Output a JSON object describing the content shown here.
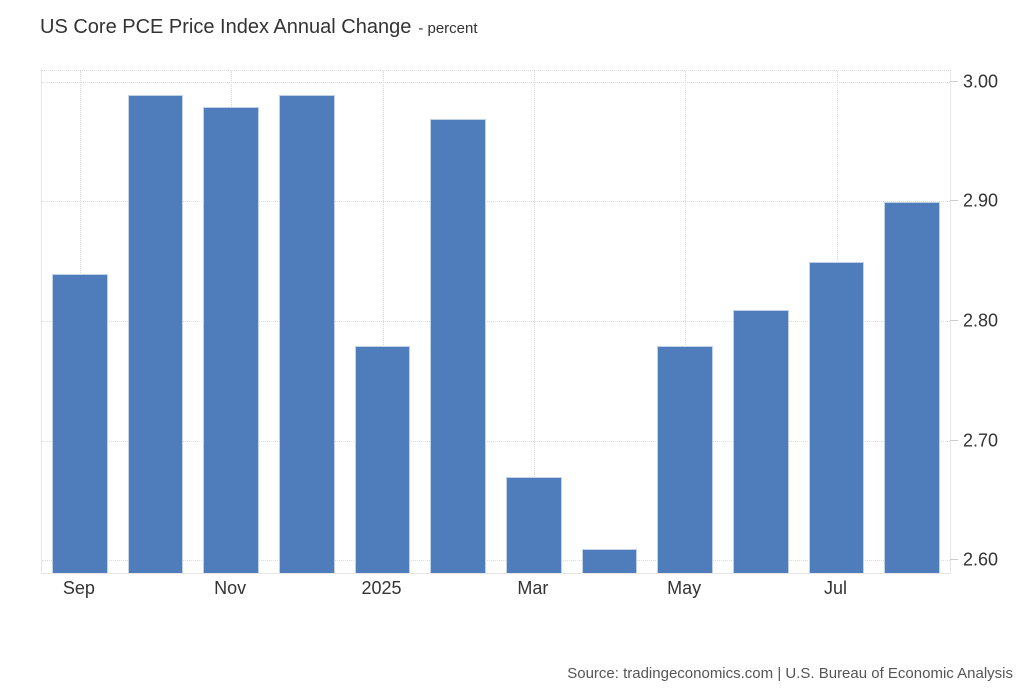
{
  "title": {
    "main": "US Core PCE Price Index Annual Change",
    "suffix": "- percent"
  },
  "source": "Source: tradingeconomics.com | U.S. Bureau of Economic Analysis",
  "colors": {
    "bar": "#4f7cba",
    "grid": "#dcdcdc",
    "plot_border": "#e6e6e6",
    "axis_text": "#333333",
    "title_text": "#333333",
    "source_text": "#555555",
    "tick_mark": "#cccccc"
  },
  "chart_data": {
    "type": "bar",
    "categories": [
      "Sep",
      "Oct",
      "Nov",
      "Dec",
      "Jan",
      "Feb",
      "Mar",
      "Apr",
      "May",
      "Jun",
      "Jul",
      "Aug"
    ],
    "values": [
      2.84,
      2.99,
      2.98,
      2.99,
      2.78,
      2.97,
      2.67,
      2.61,
      2.78,
      2.81,
      2.85,
      2.9
    ],
    "title": "US Core PCE Price Index Annual Change",
    "subtitle": "percent",
    "xlabel": "",
    "ylabel": "",
    "x_tick_labels": [
      "Sep",
      "Nov",
      "2025",
      "Mar",
      "May",
      "Jul"
    ],
    "x_tick_bar_indices": [
      0,
      2,
      4,
      6,
      8,
      10
    ],
    "y_tick_labels": [
      "2.60",
      "2.70",
      "2.80",
      "2.90",
      "3.00"
    ],
    "y_ticks": [
      2.6,
      2.7,
      2.8,
      2.9,
      3.0
    ],
    "ylim": [
      2.59,
      3.01
    ],
    "grid": true,
    "grid_style": "dotted",
    "legend": false,
    "y_axis_side": "right",
    "bar_slot_fraction": 0.74
  }
}
